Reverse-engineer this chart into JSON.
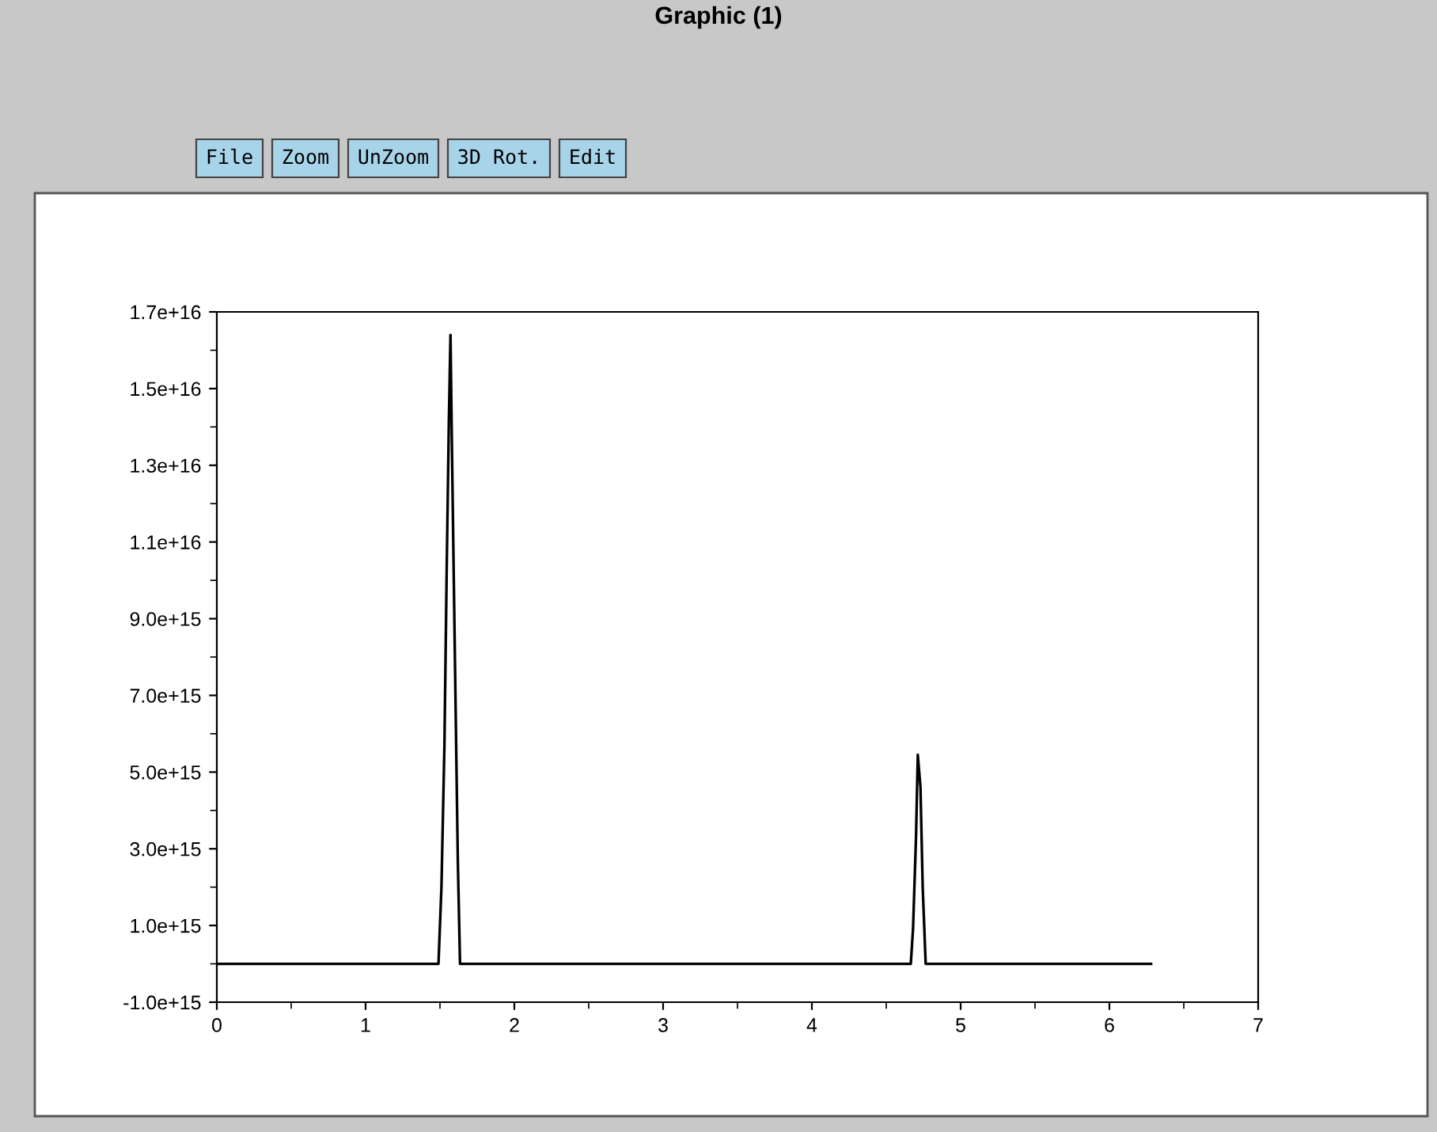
{
  "chart_data": {
    "type": "line",
    "title": "Graphic (1)",
    "annotations": [
      "File",
      "Zoom",
      "UnZoom",
      "3D Rot.",
      "Edit"
    ],
    "x": [
      0,
      1.49,
      1.51,
      1.53,
      1.545,
      1.56,
      1.5708,
      1.58,
      1.6,
      1.62,
      1.635,
      4.665,
      4.68,
      4.7,
      4.712,
      4.73,
      4.745,
      4.765,
      6.28
    ],
    "series": [
      {
        "color": "#000000",
        "values": [
          0,
          0,
          2000000000000000.0,
          5700000000000000.0,
          1.02e+16,
          1.42e+16,
          1.64e+16,
          1.36e+16,
          8100000000000000.0,
          2700000000000000.0,
          0,
          0,
          910000000000000.0,
          3300000000000000.0,
          5450000000000000.0,
          4600000000000000.0,
          2000000000000000.0,
          0,
          0
        ]
      }
    ],
    "xlim": [
      0,
      7
    ],
    "ylim": [
      -1000000000000000.0,
      1.7e+16
    ],
    "xticks": [
      0,
      1,
      2,
      3,
      4,
      5,
      6,
      7
    ],
    "yticks": [
      {
        "value": -1000000000000000.0,
        "label": "-1.0e+15"
      },
      {
        "value": 1000000000000000.0,
        "label": "1.0e+15"
      },
      {
        "value": 3000000000000000.0,
        "label": "3.0e+15"
      },
      {
        "value": 5000000000000000.0,
        "label": "5.0e+15"
      },
      {
        "value": 7000000000000000.0,
        "label": "7.0e+15"
      },
      {
        "value": 9000000000000000.0,
        "label": "9.0e+15"
      },
      {
        "value": 1.1e+16,
        "label": "1.1e+16"
      },
      {
        "value": 1.3e+16,
        "label": "1.3e+16"
      },
      {
        "value": 1.5e+16,
        "label": "1.5e+16"
      },
      {
        "value": 1.7e+16,
        "label": "1.7e+16"
      }
    ],
    "grid": false,
    "legend": false,
    "marker": "none",
    "line_style": "solid"
  }
}
